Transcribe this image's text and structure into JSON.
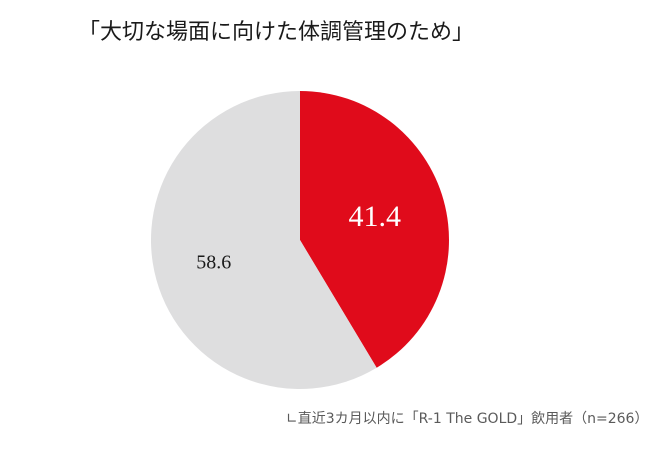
{
  "chart_data": {
    "type": "pie",
    "title": "「大切な場面に向けた体調管理のため」",
    "categories": [
      "",
      ""
    ],
    "values": [
      41.4,
      58.6
    ],
    "value_labels": [
      "41.4",
      "58.6"
    ],
    "colors": [
      "#e00b1b",
      "#dededf"
    ],
    "label_colors": [
      "#ffffff",
      "#1a1a1a"
    ],
    "start_angle_deg": 0,
    "direction": "clockwise",
    "legend": "none"
  },
  "footnote": "∟直近3カ月以内に「R-1 The GOLD」飲用者（n=266）"
}
